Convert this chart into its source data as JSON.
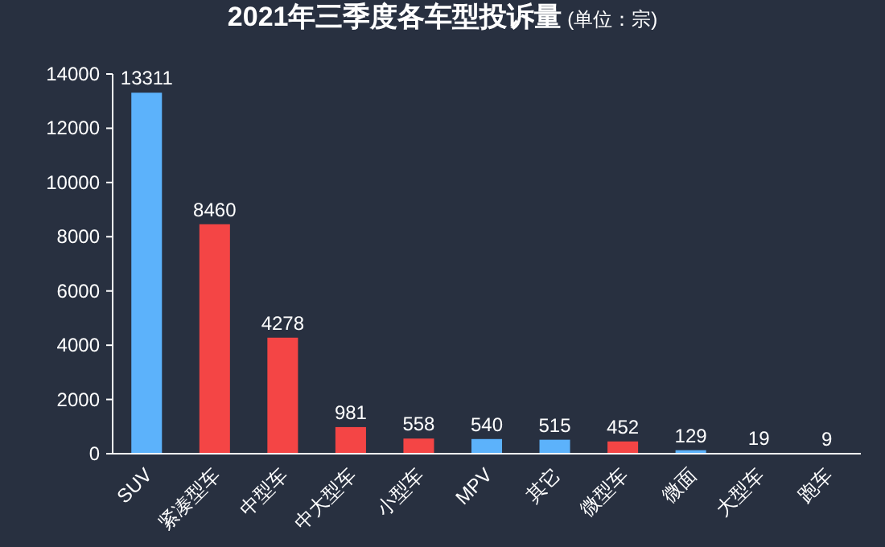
{
  "chart_data": {
    "type": "bar",
    "title": "2021年三季度各车型投诉量",
    "subtitle": "(单位：宗)",
    "categories": [
      "SUV",
      "紧凑型车",
      "中型车",
      "中大型车",
      "小型车",
      "MPV",
      "其它",
      "微型车",
      "微面",
      "大型车",
      "跑车"
    ],
    "values": [
      13311,
      8460,
      4278,
      981,
      558,
      540,
      515,
      452,
      129,
      19,
      9
    ],
    "colors": [
      "#5cb2fb",
      "#f44545",
      "#f44545",
      "#f44545",
      "#f44545",
      "#5cb2fb",
      "#5cb2fb",
      "#f44545",
      "#5cb2fb",
      "#f44545",
      "#5cb2fb"
    ],
    "ylim": [
      0,
      14000
    ],
    "yticks": [
      0,
      2000,
      4000,
      6000,
      8000,
      10000,
      12000,
      14000
    ],
    "data_labels": true,
    "grid": false
  }
}
